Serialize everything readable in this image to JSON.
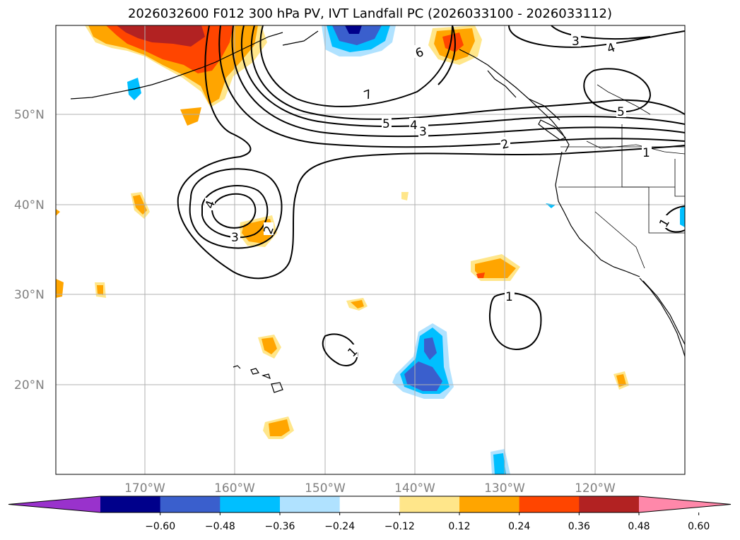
{
  "title": "2026032600 F012 300 hPa PV, IVT Landfall PC (2026033100 - 2026033112)",
  "map": {
    "lat_labels": [
      "50°N",
      "40°N",
      "30°N",
      "20°N"
    ],
    "lon_labels": [
      "170°W",
      "160°W",
      "150°W",
      "140°W",
      "130°W",
      "120°W"
    ],
    "contour_labels": [
      "3",
      "4",
      "6",
      "7",
      "5",
      "4",
      "3",
      "2",
      "1",
      "5",
      "4",
      "3",
      "2",
      "1",
      "1",
      "1"
    ]
  },
  "colorbar": {
    "colors": [
      "#9932cc",
      "#00008b",
      "#3a5fcd",
      "#00bfff",
      "#b0e2ff",
      "#ffffff",
      "#ffe68a",
      "#ffa500",
      "#ff4500",
      "#b22222",
      "#ff88aa"
    ],
    "tick_labels": [
      "−0.60",
      "−0.48",
      "−0.36",
      "−0.24",
      "−0.12",
      "0.12",
      "0.24",
      "0.36",
      "0.48",
      "0.60"
    ]
  }
}
